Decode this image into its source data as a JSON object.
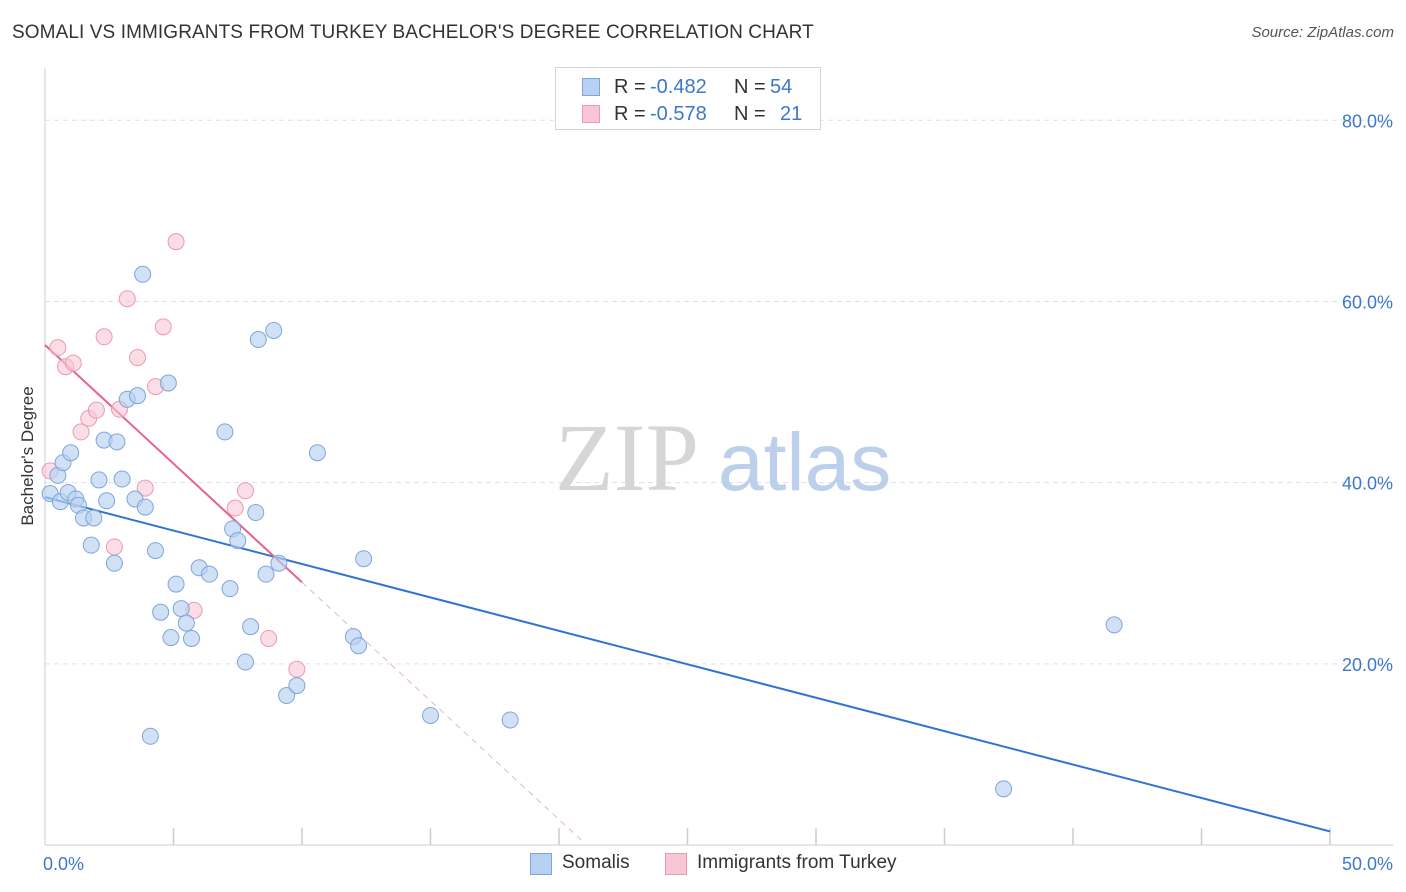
{
  "header": {
    "title": "SOMALI VS IMMIGRANTS FROM TURKEY BACHELOR'S DEGREE CORRELATION CHART",
    "source": "Source: ZipAtlas.com"
  },
  "watermark": {
    "part1": "ZIP",
    "part2": "atlas"
  },
  "legend_top": {
    "rows": [
      {
        "r_label": "R =",
        "r_value": "-0.482",
        "n_label": "N =",
        "n_value": "54"
      },
      {
        "r_label": "R =",
        "r_value": "-0.578",
        "n_label": "N =",
        "n_value": "21"
      }
    ]
  },
  "legend_bottom": {
    "items": [
      "Somalis",
      "Immigrants from Turkey"
    ]
  },
  "colors": {
    "somali_fill": "#b9d1f0",
    "somali_stroke": "#7da6da",
    "somali_line": "#2f74d0",
    "turkey_fill": "#f8c6d4",
    "turkey_stroke": "#eb9ab0",
    "turkey_line": "#e8628b",
    "grid": "#dde1e6",
    "tick_label": "#3d78cc"
  },
  "chart_data": {
    "type": "scatter",
    "title": "SOMALI VS IMMIGRANTS FROM TURKEY BACHELOR'S DEGREE CORRELATION CHART",
    "xlabel": "",
    "ylabel": "Bachelor's Degree",
    "xlim": [
      0,
      50
    ],
    "ylim": [
      0,
      85
    ],
    "x_tick_labels": [
      {
        "value": 0,
        "label": "0.0%"
      },
      {
        "value": 50,
        "label": "50.0%"
      }
    ],
    "y_tick_labels": [
      {
        "value": 20,
        "label": "20.0%"
      },
      {
        "value": 40,
        "label": "40.0%"
      },
      {
        "value": 60,
        "label": "60.0%"
      },
      {
        "value": 80,
        "label": "80.0%"
      }
    ],
    "grid": true,
    "series": [
      {
        "name": "Somalis",
        "r": -0.482,
        "n": 54,
        "points": [
          [
            0.2,
            38.8
          ],
          [
            0.5,
            40.8
          ],
          [
            0.6,
            37.9
          ],
          [
            0.7,
            42.2
          ],
          [
            0.9,
            38.9
          ],
          [
            1.0,
            43.3
          ],
          [
            1.2,
            38.2
          ],
          [
            1.3,
            37.5
          ],
          [
            1.5,
            36.1
          ],
          [
            1.8,
            33.1
          ],
          [
            1.9,
            36.1
          ],
          [
            2.1,
            40.3
          ],
          [
            2.3,
            44.7
          ],
          [
            2.4,
            38.0
          ],
          [
            2.7,
            31.1
          ],
          [
            2.8,
            44.5
          ],
          [
            3.0,
            40.4
          ],
          [
            3.2,
            49.2
          ],
          [
            3.5,
            38.2
          ],
          [
            3.6,
            49.6
          ],
          [
            3.8,
            63.0
          ],
          [
            3.9,
            37.3
          ],
          [
            4.1,
            12.0
          ],
          [
            4.3,
            32.5
          ],
          [
            4.5,
            25.7
          ],
          [
            4.8,
            51.0
          ],
          [
            4.9,
            22.9
          ],
          [
            5.1,
            28.8
          ],
          [
            5.3,
            26.1
          ],
          [
            5.5,
            24.5
          ],
          [
            5.7,
            22.8
          ],
          [
            6.0,
            30.6
          ],
          [
            6.4,
            29.9
          ],
          [
            7.0,
            45.6
          ],
          [
            7.2,
            28.3
          ],
          [
            7.3,
            34.9
          ],
          [
            7.5,
            33.6
          ],
          [
            7.8,
            20.2
          ],
          [
            8.0,
            24.1
          ],
          [
            8.2,
            36.7
          ],
          [
            8.3,
            55.8
          ],
          [
            8.6,
            29.9
          ],
          [
            8.9,
            56.8
          ],
          [
            9.1,
            31.1
          ],
          [
            9.4,
            16.5
          ],
          [
            9.8,
            17.6
          ],
          [
            10.6,
            43.3
          ],
          [
            12.0,
            23.0
          ],
          [
            12.2,
            22.0
          ],
          [
            12.4,
            31.6
          ],
          [
            15.0,
            14.3
          ],
          [
            18.1,
            13.8
          ],
          [
            41.6,
            24.3
          ],
          [
            37.3,
            6.2
          ]
        ]
      },
      {
        "name": "Immigrants from Turkey",
        "r": -0.578,
        "n": 21,
        "points": [
          [
            0.2,
            41.3
          ],
          [
            0.5,
            54.9
          ],
          [
            0.8,
            52.8
          ],
          [
            1.1,
            53.2
          ],
          [
            1.4,
            45.6
          ],
          [
            1.7,
            47.1
          ],
          [
            2.0,
            48.0
          ],
          [
            2.3,
            56.1
          ],
          [
            2.7,
            32.9
          ],
          [
            2.9,
            48.1
          ],
          [
            3.2,
            60.3
          ],
          [
            3.6,
            53.8
          ],
          [
            3.9,
            39.4
          ],
          [
            4.3,
            50.6
          ],
          [
            4.6,
            57.2
          ],
          [
            5.1,
            66.6
          ],
          [
            5.8,
            25.9
          ],
          [
            7.4,
            37.2
          ],
          [
            7.8,
            39.1
          ],
          [
            8.7,
            22.8
          ],
          [
            9.8,
            19.4
          ]
        ]
      }
    ],
    "trend_lines": [
      {
        "series": "Somalis",
        "x": [
          0,
          50
        ],
        "y": [
          38.4,
          1.5
        ],
        "style": "solid"
      },
      {
        "series": "Immigrants from Turkey",
        "x": [
          0,
          10
        ],
        "y": [
          55.2,
          29.0
        ],
        "style": "solid"
      },
      {
        "series": "Immigrants from Turkey",
        "x": [
          10,
          21
        ],
        "y": [
          29.0,
          0.2
        ],
        "style": "dashed"
      }
    ]
  }
}
